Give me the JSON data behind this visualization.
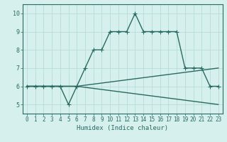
{
  "xlabel": "Humidex (Indice chaleur)",
  "xlim": [
    -0.5,
    23.5
  ],
  "ylim": [
    4.5,
    10.5
  ],
  "xticks": [
    0,
    1,
    2,
    3,
    4,
    5,
    6,
    7,
    8,
    9,
    10,
    11,
    12,
    13,
    14,
    15,
    16,
    17,
    18,
    19,
    20,
    21,
    22,
    23
  ],
  "yticks": [
    5,
    6,
    7,
    8,
    9,
    10
  ],
  "bg_color": "#d6f0ee",
  "grid_color": "#b0d8d2",
  "line_color": "#2a6b61",
  "line1_x": [
    0,
    1,
    2,
    3,
    4,
    5,
    6,
    7,
    8,
    9,
    10,
    11,
    12,
    13,
    14,
    15,
    16,
    17,
    18,
    19,
    20,
    21,
    22,
    23
  ],
  "line1_y": [
    6,
    6,
    6,
    6,
    6,
    5,
    6,
    7,
    8,
    8,
    9,
    9,
    9,
    10,
    9,
    9,
    9,
    9,
    9,
    7,
    7,
    7,
    6,
    6
  ],
  "line2_x": [
    0,
    6,
    23
  ],
  "line2_y": [
    6,
    6,
    7
  ],
  "line3_x": [
    0,
    6,
    23
  ],
  "line3_y": [
    6,
    6,
    5
  ],
  "marker": "+",
  "markersize": 4,
  "linewidth": 1.0
}
